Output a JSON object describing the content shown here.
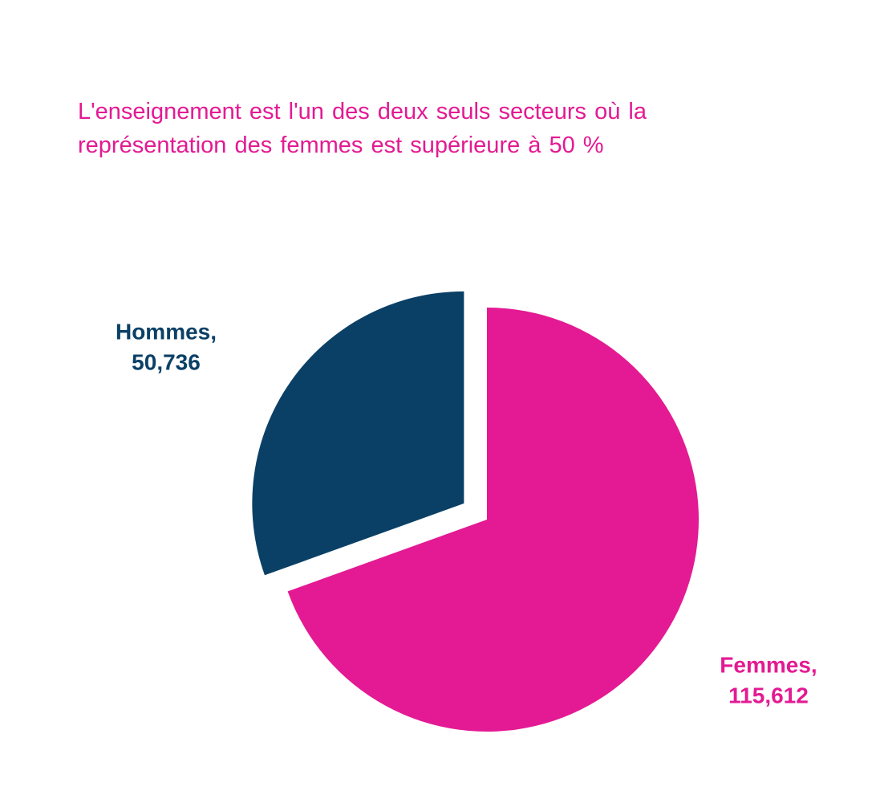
{
  "chart_data": {
    "type": "pie",
    "title": "L'enseignement est l'un des deux seuls secteurs où la représentation des femmes est supérieure à 50 %",
    "categories": [
      "Femmes,",
      "Hommes,"
    ],
    "values": [
      115612,
      50736
    ],
    "value_labels": [
      "115,612",
      "50,736"
    ],
    "colors": [
      "#e31a93",
      "#0b4066"
    ],
    "exploded": [
      false,
      true
    ]
  }
}
